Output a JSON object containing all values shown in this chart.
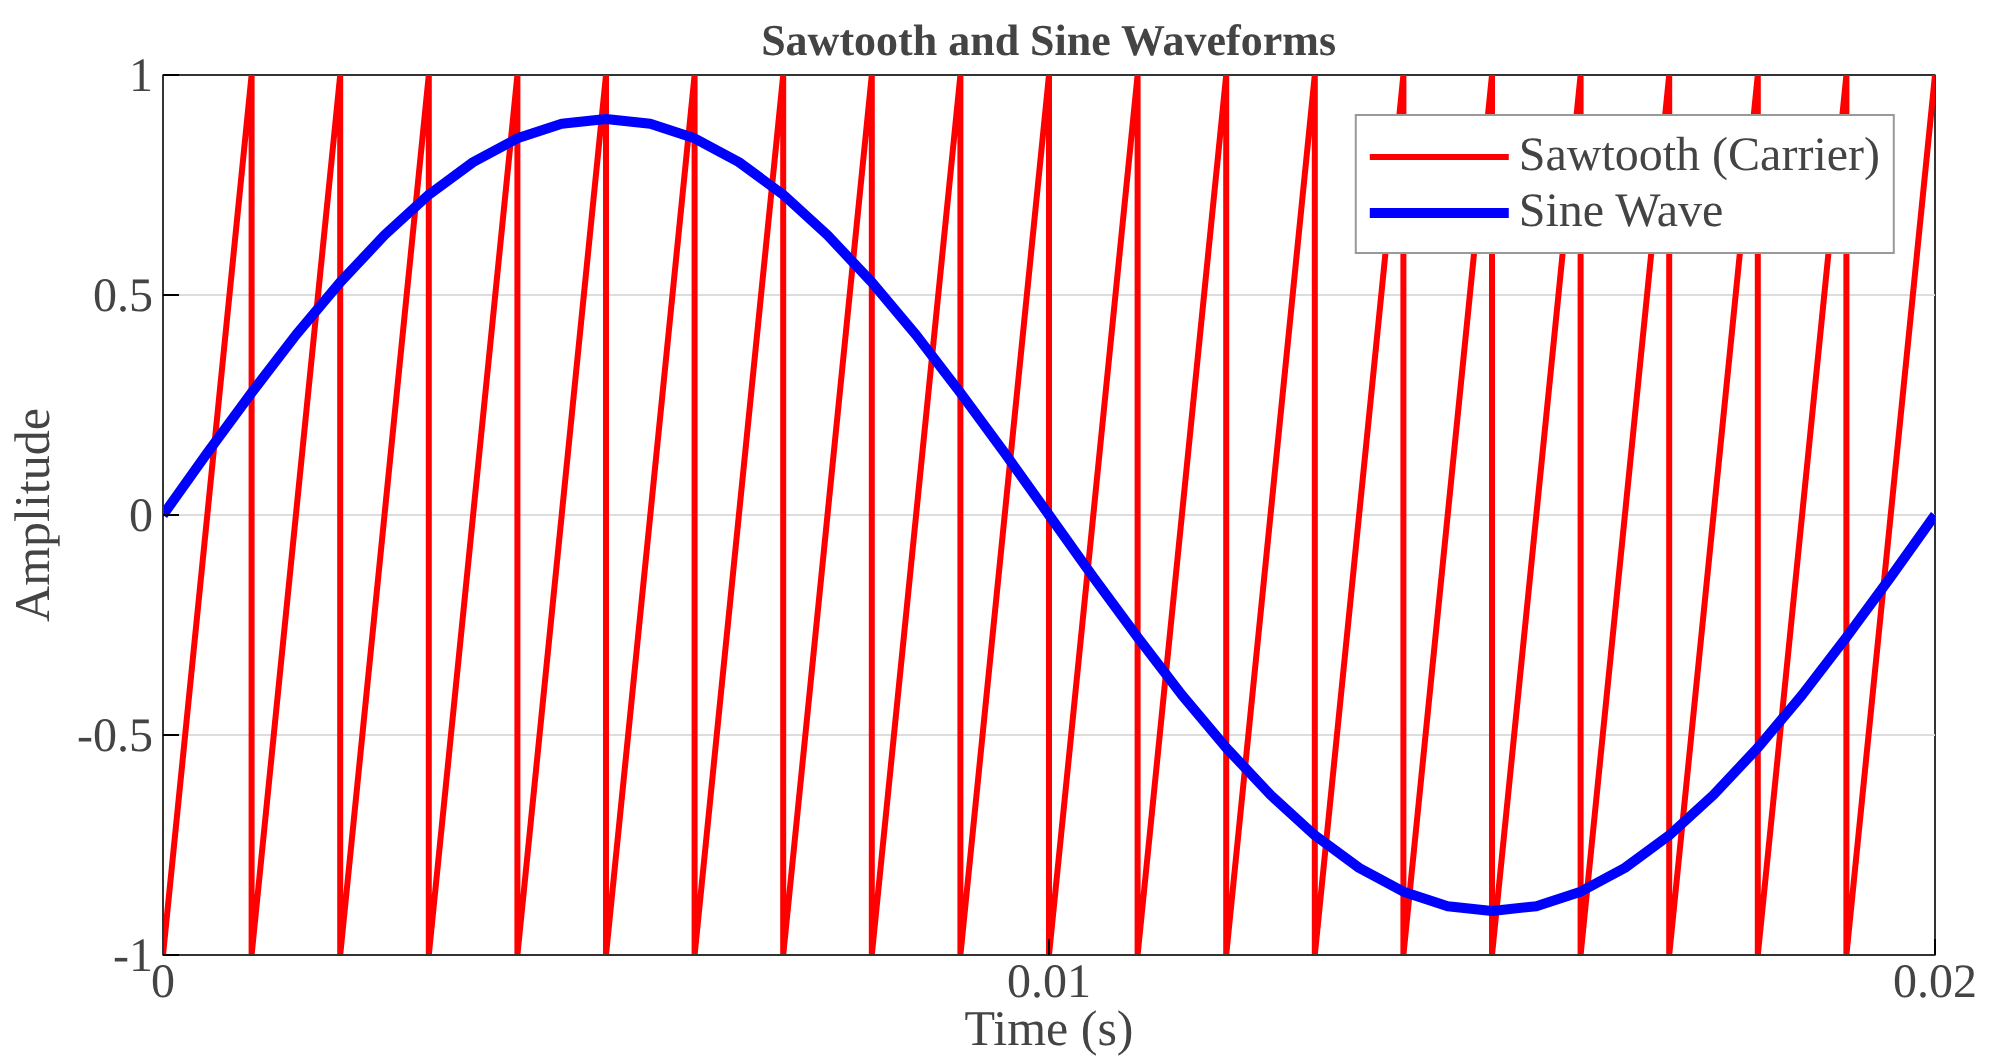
{
  "chart_data": {
    "type": "line",
    "title": "Sawtooth and Sine Waveforms",
    "xlabel": "Time (s)",
    "ylabel": "Amplitude",
    "xlim": [
      0,
      0.02
    ],
    "xticks": [
      0,
      0.01,
      0.02
    ],
    "ylim": [
      -1,
      1
    ],
    "yticks": [
      -1,
      -0.5,
      0,
      0.5,
      1
    ],
    "grid": "y",
    "legend": "top right",
    "line_style": "solid",
    "marker": "none",
    "series": [
      {
        "name": "Sawtooth (Carrier)",
        "color": "#ff0000",
        "x": [
          0,
          0.001,
          0.001,
          0.002,
          0.002,
          0.003,
          0.003,
          0.004,
          0.004,
          0.005,
          0.005,
          0.006,
          0.006,
          0.007,
          0.007,
          0.008,
          0.008,
          0.009,
          0.009,
          0.01,
          0.01,
          0.011,
          0.011,
          0.012,
          0.012,
          0.013,
          0.013,
          0.014,
          0.014,
          0.015,
          0.015,
          0.016,
          0.016,
          0.017,
          0.017,
          0.018,
          0.018,
          0.019,
          0.019,
          0.02
        ],
        "values": [
          -1,
          1,
          -1,
          1,
          -1,
          1,
          -1,
          1,
          -1,
          1,
          -1,
          1,
          -1,
          1,
          -1,
          1,
          -1,
          1,
          -1,
          1,
          -1,
          1,
          -1,
          1,
          -1,
          1,
          -1,
          1,
          -1,
          1,
          -1,
          1,
          -1,
          1,
          -1,
          1,
          -1,
          1,
          -1,
          1
        ]
      },
      {
        "name": "Sine Wave",
        "color": "#0000ff",
        "x": [
          0,
          0.0005,
          0.001,
          0.0015,
          0.002,
          0.0025,
          0.003,
          0.0035,
          0.004,
          0.0045,
          0.005,
          0.0055,
          0.006,
          0.0065,
          0.007,
          0.0075,
          0.008,
          0.0085,
          0.009,
          0.0095,
          0.01,
          0.0105,
          0.011,
          0.0115,
          0.012,
          0.0125,
          0.013,
          0.0135,
          0.014,
          0.0145,
          0.015,
          0.0155,
          0.016,
          0.0165,
          0.017,
          0.0175,
          0.018,
          0.0185,
          0.019,
          0.0195,
          0.02
        ],
        "values": [
          0,
          0.141,
          0.278,
          0.409,
          0.529,
          0.636,
          0.728,
          0.802,
          0.856,
          0.889,
          0.9,
          0.889,
          0.856,
          0.802,
          0.728,
          0.636,
          0.529,
          0.409,
          0.278,
          0.141,
          0,
          -0.141,
          -0.278,
          -0.409,
          -0.529,
          -0.636,
          -0.728,
          -0.802,
          -0.856,
          -0.889,
          -0.9,
          -0.889,
          -0.856,
          -0.802,
          -0.728,
          -0.636,
          -0.529,
          -0.409,
          -0.278,
          -0.141,
          0
        ]
      }
    ]
  }
}
